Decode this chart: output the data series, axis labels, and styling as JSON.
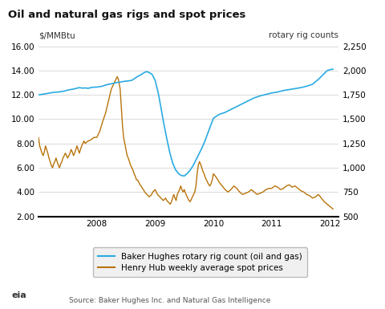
{
  "title": "Oil and natural gas rigs and spot prices",
  "ylabel_left": "$/MMBtu",
  "ylabel_right": "rotary rig counts",
  "source": "Source: Baker Hughes Inc. and Natural Gas Intelligence",
  "ylim_left": [
    2.0,
    16.0
  ],
  "ylim_right": [
    500,
    2250
  ],
  "yticks_left": [
    2.0,
    4.0,
    6.0,
    8.0,
    10.0,
    12.0,
    14.0,
    16.0
  ],
  "yticks_right": [
    500,
    750,
    1000,
    1250,
    1500,
    1750,
    2000,
    2250
  ],
  "rig_color": "#29ABE2",
  "price_color": "#B8730A",
  "bg_color": "#FFFFFF",
  "grid_color": "#CCCCCC",
  "xlim": [
    2007.0,
    2012.15
  ],
  "xticks": [
    2008,
    2009,
    2010,
    2011,
    2012
  ],
  "rig_data": [
    [
      2007.0,
      1750
    ],
    [
      2007.05,
      1755
    ],
    [
      2007.1,
      1760
    ],
    [
      2007.15,
      1765
    ],
    [
      2007.2,
      1770
    ],
    [
      2007.25,
      1775
    ],
    [
      2007.3,
      1778
    ],
    [
      2007.35,
      1780
    ],
    [
      2007.4,
      1785
    ],
    [
      2007.45,
      1790
    ],
    [
      2007.5,
      1800
    ],
    [
      2007.55,
      1805
    ],
    [
      2007.6,
      1810
    ],
    [
      2007.65,
      1818
    ],
    [
      2007.7,
      1825
    ],
    [
      2007.75,
      1820
    ],
    [
      2007.8,
      1822
    ],
    [
      2007.85,
      1818
    ],
    [
      2007.9,
      1825
    ],
    [
      2007.95,
      1830
    ],
    [
      2008.0,
      1830
    ],
    [
      2008.05,
      1835
    ],
    [
      2008.1,
      1840
    ],
    [
      2008.15,
      1852
    ],
    [
      2008.2,
      1858
    ],
    [
      2008.25,
      1865
    ],
    [
      2008.3,
      1872
    ],
    [
      2008.35,
      1878
    ],
    [
      2008.4,
      1882
    ],
    [
      2008.45,
      1888
    ],
    [
      2008.5,
      1892
    ],
    [
      2008.55,
      1895
    ],
    [
      2008.6,
      1900
    ],
    [
      2008.65,
      1920
    ],
    [
      2008.7,
      1940
    ],
    [
      2008.75,
      1955
    ],
    [
      2008.8,
      1975
    ],
    [
      2008.85,
      1990
    ],
    [
      2008.9,
      1980
    ],
    [
      2008.95,
      1960
    ],
    [
      2009.0,
      1900
    ],
    [
      2009.05,
      1780
    ],
    [
      2009.1,
      1620
    ],
    [
      2009.15,
      1450
    ],
    [
      2009.2,
      1300
    ],
    [
      2009.25,
      1160
    ],
    [
      2009.3,
      1050
    ],
    [
      2009.35,
      980
    ],
    [
      2009.4,
      940
    ],
    [
      2009.45,
      920
    ],
    [
      2009.5,
      915
    ],
    [
      2009.55,
      940
    ],
    [
      2009.6,
      975
    ],
    [
      2009.65,
      1020
    ],
    [
      2009.7,
      1080
    ],
    [
      2009.75,
      1140
    ],
    [
      2009.8,
      1200
    ],
    [
      2009.85,
      1270
    ],
    [
      2009.9,
      1350
    ],
    [
      2009.95,
      1430
    ],
    [
      2010.0,
      1510
    ],
    [
      2010.1,
      1550
    ],
    [
      2010.2,
      1570
    ],
    [
      2010.3,
      1600
    ],
    [
      2010.4,
      1630
    ],
    [
      2010.5,
      1660
    ],
    [
      2010.6,
      1690
    ],
    [
      2010.7,
      1720
    ],
    [
      2010.8,
      1740
    ],
    [
      2010.9,
      1755
    ],
    [
      2011.0,
      1770
    ],
    [
      2011.1,
      1780
    ],
    [
      2011.2,
      1795
    ],
    [
      2011.3,
      1805
    ],
    [
      2011.4,
      1815
    ],
    [
      2011.5,
      1825
    ],
    [
      2011.6,
      1840
    ],
    [
      2011.7,
      1860
    ],
    [
      2011.8,
      1910
    ],
    [
      2011.9,
      1970
    ],
    [
      2011.95,
      2000
    ],
    [
      2012.0,
      2010
    ],
    [
      2012.05,
      2015
    ]
  ],
  "price_data": [
    [
      2007.0,
      8.5
    ],
    [
      2007.02,
      7.8
    ],
    [
      2007.04,
      7.5
    ],
    [
      2007.06,
      7.2
    ],
    [
      2007.08,
      7.0
    ],
    [
      2007.1,
      7.3
    ],
    [
      2007.12,
      7.8
    ],
    [
      2007.14,
      7.5
    ],
    [
      2007.16,
      7.2
    ],
    [
      2007.18,
      6.8
    ],
    [
      2007.2,
      6.5
    ],
    [
      2007.22,
      6.2
    ],
    [
      2007.24,
      6.0
    ],
    [
      2007.26,
      6.3
    ],
    [
      2007.28,
      6.5
    ],
    [
      2007.3,
      6.8
    ],
    [
      2007.32,
      6.5
    ],
    [
      2007.34,
      6.2
    ],
    [
      2007.36,
      6.0
    ],
    [
      2007.38,
      6.3
    ],
    [
      2007.4,
      6.5
    ],
    [
      2007.42,
      6.8
    ],
    [
      2007.44,
      7.0
    ],
    [
      2007.46,
      7.2
    ],
    [
      2007.48,
      7.0
    ],
    [
      2007.5,
      6.8
    ],
    [
      2007.52,
      7.0
    ],
    [
      2007.54,
      7.2
    ],
    [
      2007.56,
      7.5
    ],
    [
      2007.58,
      7.3
    ],
    [
      2007.6,
      7.0
    ],
    [
      2007.62,
      7.2
    ],
    [
      2007.64,
      7.5
    ],
    [
      2007.66,
      7.8
    ],
    [
      2007.68,
      7.5
    ],
    [
      2007.7,
      7.2
    ],
    [
      2007.72,
      7.5
    ],
    [
      2007.74,
      7.8
    ],
    [
      2007.76,
      8.0
    ],
    [
      2007.78,
      8.2
    ],
    [
      2007.8,
      8.0
    ],
    [
      2007.85,
      8.2
    ],
    [
      2007.9,
      8.3
    ],
    [
      2007.95,
      8.5
    ],
    [
      2008.0,
      8.5
    ],
    [
      2008.05,
      9.0
    ],
    [
      2008.1,
      9.8
    ],
    [
      2008.15,
      10.5
    ],
    [
      2008.2,
      11.5
    ],
    [
      2008.25,
      12.5
    ],
    [
      2008.3,
      13.0
    ],
    [
      2008.35,
      13.5
    ],
    [
      2008.37,
      13.3
    ],
    [
      2008.4,
      12.5
    ],
    [
      2008.42,
      11.0
    ],
    [
      2008.44,
      9.5
    ],
    [
      2008.46,
      8.5
    ],
    [
      2008.48,
      8.0
    ],
    [
      2008.5,
      7.5
    ],
    [
      2008.52,
      7.0
    ],
    [
      2008.54,
      6.8
    ],
    [
      2008.56,
      6.5
    ],
    [
      2008.58,
      6.2
    ],
    [
      2008.6,
      6.0
    ],
    [
      2008.62,
      5.8
    ],
    [
      2008.64,
      5.5
    ],
    [
      2008.66,
      5.3
    ],
    [
      2008.68,
      5.0
    ],
    [
      2008.7,
      5.0
    ],
    [
      2008.72,
      4.8
    ],
    [
      2008.74,
      4.6
    ],
    [
      2008.76,
      4.5
    ],
    [
      2008.78,
      4.3
    ],
    [
      2008.8,
      4.2
    ],
    [
      2008.82,
      4.0
    ],
    [
      2008.84,
      3.9
    ],
    [
      2008.86,
      3.8
    ],
    [
      2008.88,
      3.7
    ],
    [
      2008.9,
      3.6
    ],
    [
      2008.92,
      3.7
    ],
    [
      2008.94,
      3.8
    ],
    [
      2008.96,
      4.0
    ],
    [
      2008.98,
      4.1
    ],
    [
      2009.0,
      4.2
    ],
    [
      2009.02,
      4.0
    ],
    [
      2009.04,
      3.8
    ],
    [
      2009.06,
      3.7
    ],
    [
      2009.08,
      3.6
    ],
    [
      2009.1,
      3.5
    ],
    [
      2009.12,
      3.4
    ],
    [
      2009.14,
      3.3
    ],
    [
      2009.16,
      3.4
    ],
    [
      2009.18,
      3.5
    ],
    [
      2009.2,
      3.3
    ],
    [
      2009.22,
      3.2
    ],
    [
      2009.24,
      3.1
    ],
    [
      2009.26,
      3.0
    ],
    [
      2009.28,
      3.2
    ],
    [
      2009.3,
      3.5
    ],
    [
      2009.32,
      3.8
    ],
    [
      2009.34,
      3.5
    ],
    [
      2009.36,
      3.3
    ],
    [
      2009.38,
      3.8
    ],
    [
      2009.4,
      4.0
    ],
    [
      2009.42,
      4.2
    ],
    [
      2009.44,
      4.5
    ],
    [
      2009.46,
      4.2
    ],
    [
      2009.48,
      4.0
    ],
    [
      2009.5,
      4.2
    ],
    [
      2009.52,
      3.9
    ],
    [
      2009.54,
      3.7
    ],
    [
      2009.56,
      3.5
    ],
    [
      2009.58,
      3.3
    ],
    [
      2009.6,
      3.2
    ],
    [
      2009.62,
      3.4
    ],
    [
      2009.64,
      3.6
    ],
    [
      2009.66,
      3.8
    ],
    [
      2009.68,
      4.0
    ],
    [
      2009.7,
      4.5
    ],
    [
      2009.72,
      5.5
    ],
    [
      2009.74,
      6.2
    ],
    [
      2009.76,
      6.5
    ],
    [
      2009.78,
      6.3
    ],
    [
      2009.8,
      6.0
    ],
    [
      2009.82,
      5.7
    ],
    [
      2009.84,
      5.5
    ],
    [
      2009.86,
      5.2
    ],
    [
      2009.88,
      5.0
    ],
    [
      2009.9,
      4.8
    ],
    [
      2009.92,
      4.6
    ],
    [
      2009.94,
      4.5
    ],
    [
      2009.96,
      4.7
    ],
    [
      2009.98,
      5.0
    ],
    [
      2010.0,
      5.5
    ],
    [
      2010.05,
      5.2
    ],
    [
      2010.1,
      4.8
    ],
    [
      2010.15,
      4.5
    ],
    [
      2010.2,
      4.2
    ],
    [
      2010.25,
      4.0
    ],
    [
      2010.3,
      4.2
    ],
    [
      2010.35,
      4.5
    ],
    [
      2010.4,
      4.3
    ],
    [
      2010.45,
      4.0
    ],
    [
      2010.5,
      3.8
    ],
    [
      2010.55,
      3.9
    ],
    [
      2010.6,
      4.0
    ],
    [
      2010.65,
      4.2
    ],
    [
      2010.7,
      4.0
    ],
    [
      2010.75,
      3.8
    ],
    [
      2010.8,
      3.9
    ],
    [
      2010.85,
      4.0
    ],
    [
      2010.9,
      4.2
    ],
    [
      2010.95,
      4.3
    ],
    [
      2011.0,
      4.3
    ],
    [
      2011.05,
      4.5
    ],
    [
      2011.1,
      4.4
    ],
    [
      2011.15,
      4.2
    ],
    [
      2011.2,
      4.3
    ],
    [
      2011.25,
      4.5
    ],
    [
      2011.3,
      4.6
    ],
    [
      2011.35,
      4.4
    ],
    [
      2011.4,
      4.5
    ],
    [
      2011.45,
      4.3
    ],
    [
      2011.5,
      4.1
    ],
    [
      2011.55,
      4.0
    ],
    [
      2011.6,
      3.8
    ],
    [
      2011.65,
      3.7
    ],
    [
      2011.7,
      3.5
    ],
    [
      2011.75,
      3.6
    ],
    [
      2011.8,
      3.8
    ],
    [
      2011.85,
      3.5
    ],
    [
      2011.9,
      3.2
    ],
    [
      2011.95,
      3.0
    ],
    [
      2012.0,
      2.8
    ],
    [
      2012.05,
      2.6
    ]
  ]
}
